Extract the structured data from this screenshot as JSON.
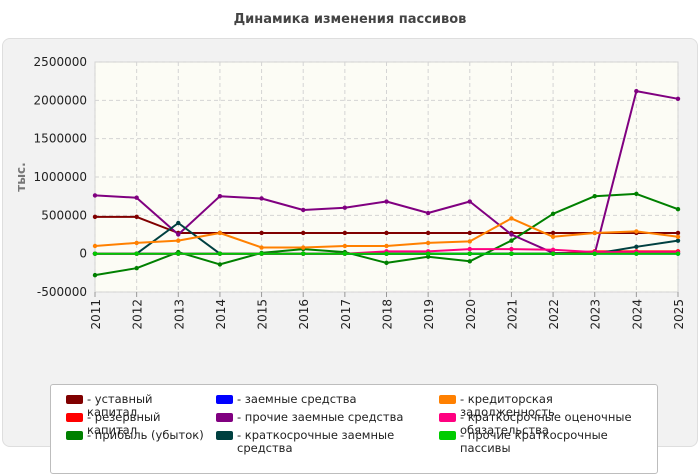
{
  "chart_data": {
    "type": "line",
    "title": "Динамика изменения пассивов",
    "ylabel": "тыс.",
    "xlabel": "",
    "ylim": [
      -500000,
      2500000
    ],
    "yticks": [
      -500000,
      0,
      500000,
      1000000,
      1500000,
      2000000,
      2500000
    ],
    "ytick_labels": [
      "-500000",
      "0",
      "500000",
      "1000000",
      "1500000",
      "2000000",
      "2500000"
    ],
    "x": [
      "2011",
      "2012",
      "2013",
      "2014",
      "2015",
      "2016",
      "2017",
      "2018",
      "2019",
      "2020",
      "2021",
      "2022",
      "2023",
      "2024",
      "2025"
    ],
    "grid": true,
    "legend_position": "bottom",
    "series": [
      {
        "name": "уставный капитал",
        "color": "#800000",
        "values": [
          480000,
          480000,
          270000,
          270000,
          270000,
          270000,
          270000,
          270000,
          270000,
          270000,
          270000,
          270000,
          270000,
          270000,
          270000
        ]
      },
      {
        "name": "резервный капитал",
        "color": "#ff0000",
        "values": [
          0,
          0,
          0,
          0,
          0,
          0,
          0,
          0,
          0,
          0,
          0,
          0,
          30000,
          30000,
          30000
        ]
      },
      {
        "name": "прибыль (убыток)",
        "color": "#008000",
        "values": [
          -280000,
          -190000,
          20000,
          -140000,
          10000,
          60000,
          20000,
          -120000,
          -40000,
          -100000,
          170000,
          520000,
          750000,
          780000,
          580000
        ]
      },
      {
        "name": "заемные средства",
        "color": "#0000ff",
        "values": [
          0,
          0,
          0,
          0,
          0,
          0,
          0,
          0,
          0,
          0,
          0,
          0,
          0,
          0,
          0
        ]
      },
      {
        "name": "прочие заемные средства",
        "color": "#800080",
        "values": [
          760000,
          730000,
          250000,
          750000,
          720000,
          570000,
          600000,
          680000,
          530000,
          680000,
          250000,
          10000,
          0,
          2120000,
          2020000
        ]
      },
      {
        "name": "краткосрочные заемные средства",
        "color": "#004040",
        "values": [
          0,
          0,
          400000,
          0,
          0,
          0,
          0,
          0,
          0,
          0,
          0,
          0,
          0,
          90000,
          170000
        ]
      },
      {
        "name": "кредиторская задолженность",
        "color": "#ff8000",
        "values": [
          100000,
          140000,
          170000,
          270000,
          80000,
          80000,
          100000,
          100000,
          140000,
          160000,
          460000,
          220000,
          270000,
          290000,
          220000
        ]
      },
      {
        "name": "краткосрочные оценочные обязательства",
        "color": "#ff0080",
        "values": [
          0,
          0,
          0,
          0,
          0,
          0,
          0,
          30000,
          30000,
          60000,
          60000,
          50000,
          20000,
          20000,
          20000
        ]
      },
      {
        "name": "прочие краткосрочные пассивы",
        "color": "#00cc00",
        "values": [
          0,
          0,
          0,
          0,
          0,
          0,
          0,
          0,
          0,
          0,
          0,
          0,
          0,
          0,
          0
        ]
      }
    ]
  }
}
